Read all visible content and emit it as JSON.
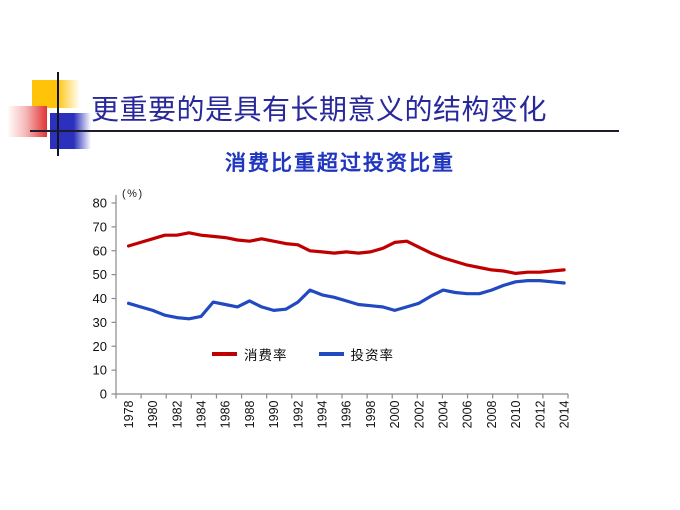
{
  "slide": {
    "title": "更重要的是具有长期意义的结构变化",
    "subtitle": "消费比重超过投资比重"
  },
  "colors": {
    "title_text": "#28289b",
    "subtitle_text": "#2136be",
    "consumption_line": "#c00000",
    "investment_line": "#2149c0",
    "axis": "#8a8a8a",
    "axis_label": "#111111",
    "logo_yellow": "#ffc40a",
    "logo_red": "#e23434",
    "logo_blue": "#2b31bd"
  },
  "chart_data": {
    "type": "line",
    "title": "消费比重超过投资比重",
    "unit_label": "(%)",
    "xlabel": "",
    "ylabel": "",
    "ylim": [
      0,
      80
    ],
    "ytick_step": 10,
    "grid": false,
    "legend_position": "bottom-center-inside",
    "x_tick_labels": [
      "1978",
      "1980",
      "1982",
      "1984",
      "1986",
      "1988",
      "1990",
      "1992",
      "1994",
      "1996",
      "1998",
      "2000",
      "2002",
      "2004",
      "2006",
      "2008",
      "2010",
      "2012",
      "2014"
    ],
    "x": [
      1978,
      1979,
      1980,
      1981,
      1982,
      1983,
      1984,
      1985,
      1986,
      1987,
      1988,
      1989,
      1990,
      1991,
      1992,
      1993,
      1994,
      1995,
      1996,
      1997,
      1998,
      1999,
      2000,
      2001,
      2002,
      2003,
      2004,
      2005,
      2006,
      2007,
      2008,
      2009,
      2010,
      2011,
      2012,
      2013,
      2014
    ],
    "series": [
      {
        "name": "消费率",
        "color": "#c00000",
        "values": [
          62,
          63.5,
          65,
          66.5,
          66.5,
          67.5,
          66.5,
          66,
          65.5,
          64.5,
          64,
          65,
          64,
          63,
          62.5,
          60,
          59.5,
          59,
          59.5,
          59,
          59.5,
          61,
          63.5,
          64,
          61.5,
          59,
          57,
          55.5,
          54,
          53,
          52,
          51.5,
          50.5,
          51,
          51,
          51.5,
          52
        ]
      },
      {
        "name": "投资率",
        "color": "#2149c0",
        "values": [
          38,
          36.5,
          35,
          33,
          32,
          31.5,
          32.5,
          38.5,
          37.5,
          36.5,
          39,
          36.5,
          35,
          35.5,
          38.5,
          43.5,
          41.5,
          40.5,
          39,
          37.5,
          37,
          36.5,
          35,
          36.5,
          38,
          41,
          43.5,
          42.5,
          42,
          42,
          43.5,
          45.5,
          47,
          47.5,
          47.5,
          47,
          46.5
        ]
      }
    ]
  }
}
